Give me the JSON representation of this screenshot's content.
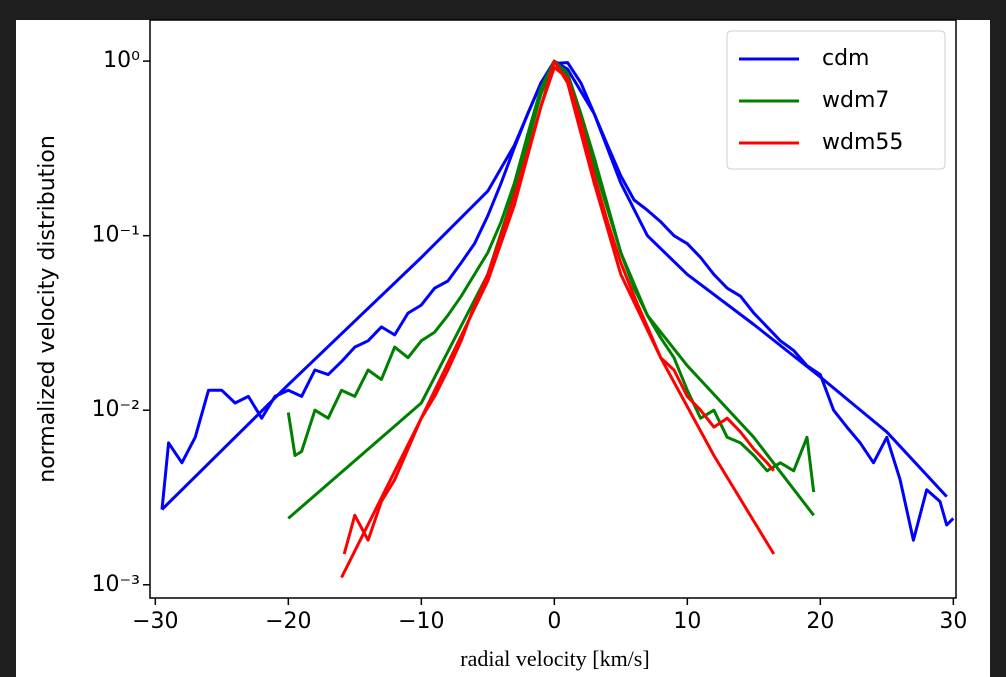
{
  "chart_data": {
    "type": "line",
    "log_y": true,
    "x_label": "radial velocity [km/s]",
    "y_label": "normalized velocity distribution",
    "xlim": [
      -30.4,
      30.2
    ],
    "ylim": [
      0.00084,
      1.72
    ],
    "xticks": [
      {
        "value": -30,
        "label": "−30"
      },
      {
        "value": -20,
        "label": "−20"
      },
      {
        "value": -10,
        "label": "−10"
      },
      0,
      10,
      20,
      30
    ],
    "yticks": [
      {
        "value": 0.001,
        "label": "10⁻³"
      },
      {
        "value": 0.01,
        "label": "10⁻²"
      },
      {
        "value": 0.1,
        "label": "10⁻¹"
      },
      {
        "value": 1,
        "label": "10⁰"
      }
    ],
    "legend": "upper right",
    "series": [
      {
        "name": "cdm",
        "color": "#0000ff",
        "x": [
          -29.5,
          -29,
          -28,
          -27,
          -26,
          -25,
          -24,
          -23,
          -22,
          -21,
          -20,
          -19,
          -18,
          -17,
          -16,
          -15,
          -14,
          -13,
          -12,
          -11,
          -10,
          -9,
          -8,
          -7,
          -6,
          -5,
          -4,
          -3,
          -2,
          -1,
          0,
          1,
          2,
          3,
          4,
          5,
          6,
          7,
          8,
          9,
          10,
          11,
          12,
          13,
          14,
          15,
          16,
          17,
          18,
          19,
          20,
          21,
          22,
          23,
          24,
          25,
          26,
          27,
          28,
          29,
          29.5,
          30
        ],
        "values": [
          0.0027,
          0.0065,
          0.005,
          0.007,
          0.013,
          0.013,
          0.011,
          0.012,
          0.009,
          0.012,
          0.013,
          0.012,
          0.017,
          0.016,
          0.019,
          0.023,
          0.025,
          0.03,
          0.027,
          0.036,
          0.04,
          0.05,
          0.055,
          0.07,
          0.09,
          0.13,
          0.2,
          0.32,
          0.5,
          0.75,
          0.97,
          0.98,
          0.75,
          0.5,
          0.33,
          0.22,
          0.16,
          0.14,
          0.12,
          0.1,
          0.09,
          0.075,
          0.06,
          0.05,
          0.045,
          0.036,
          0.03,
          0.025,
          0.022,
          0.018,
          0.016,
          0.01,
          0.008,
          0.0065,
          0.005,
          0.007,
          0.004,
          0.0018,
          0.0035,
          0.003,
          0.0022,
          0.0024
        ],
        "fit_x": [
          -29.5,
          -20,
          -10,
          -5,
          -3,
          -1,
          0,
          1,
          3,
          5,
          7,
          10,
          15,
          20,
          25,
          29.5
        ],
        "fit_values": [
          0.0027,
          0.014,
          0.075,
          0.18,
          0.33,
          0.75,
          1,
          0.9,
          0.5,
          0.2,
          0.1,
          0.06,
          0.031,
          0.0155,
          0.0075,
          0.0032
        ]
      },
      {
        "name": "wdm7",
        "color": "#008000",
        "x": [
          -20,
          -19.5,
          -19,
          -18,
          -17,
          -16,
          -15,
          -14,
          -13,
          -12,
          -11,
          -10,
          -9,
          -8,
          -7,
          -6,
          -5,
          -4,
          -3,
          -2,
          -1,
          0,
          1,
          2,
          3,
          4,
          5,
          6,
          7,
          8,
          9,
          10,
          11,
          12,
          13,
          14,
          15,
          16,
          17,
          18,
          19,
          19.5
        ],
        "values": [
          0.0097,
          0.0055,
          0.0058,
          0.01,
          0.009,
          0.013,
          0.012,
          0.017,
          0.015,
          0.023,
          0.02,
          0.025,
          0.028,
          0.035,
          0.045,
          0.06,
          0.08,
          0.12,
          0.2,
          0.38,
          0.7,
          1.0,
          0.85,
          0.5,
          0.28,
          0.15,
          0.08,
          0.05,
          0.035,
          0.026,
          0.02,
          0.013,
          0.009,
          0.01,
          0.007,
          0.0065,
          0.0055,
          0.0045,
          0.005,
          0.0045,
          0.007,
          0.0034
        ],
        "fit_x": [
          -20,
          -10,
          -5,
          -3,
          -1,
          0,
          1,
          3,
          5,
          7,
          10,
          15,
          19.5
        ],
        "fit_values": [
          0.0024,
          0.011,
          0.06,
          0.18,
          0.65,
          1,
          0.8,
          0.25,
          0.08,
          0.035,
          0.018,
          0.007,
          0.0025
        ]
      },
      {
        "name": "wdm55",
        "color": "#ff0000",
        "x": [
          -15.8,
          -15,
          -14,
          -13,
          -12,
          -11,
          -10,
          -9,
          -8,
          -7,
          -6,
          -5,
          -4,
          -3,
          -2,
          -1,
          0,
          1,
          2,
          3,
          4,
          5,
          6,
          7,
          8,
          9,
          10,
          11,
          12,
          13,
          14,
          15,
          16,
          16.5
        ],
        "values": [
          0.0015,
          0.0025,
          0.0018,
          0.003,
          0.004,
          0.006,
          0.009,
          0.012,
          0.017,
          0.025,
          0.04,
          0.06,
          0.1,
          0.17,
          0.3,
          0.55,
          0.92,
          0.8,
          0.45,
          0.22,
          0.12,
          0.07,
          0.045,
          0.03,
          0.02,
          0.017,
          0.012,
          0.01,
          0.008,
          0.009,
          0.0075,
          0.006,
          0.005,
          0.0045
        ],
        "fit_x": [
          -16,
          -10,
          -5,
          -3,
          -1,
          0,
          1,
          3,
          5,
          8,
          12,
          16.5
        ],
        "fit_values": [
          0.0011,
          0.009,
          0.055,
          0.15,
          0.55,
          1,
          0.75,
          0.2,
          0.06,
          0.02,
          0.0055,
          0.0015
        ]
      }
    ]
  }
}
